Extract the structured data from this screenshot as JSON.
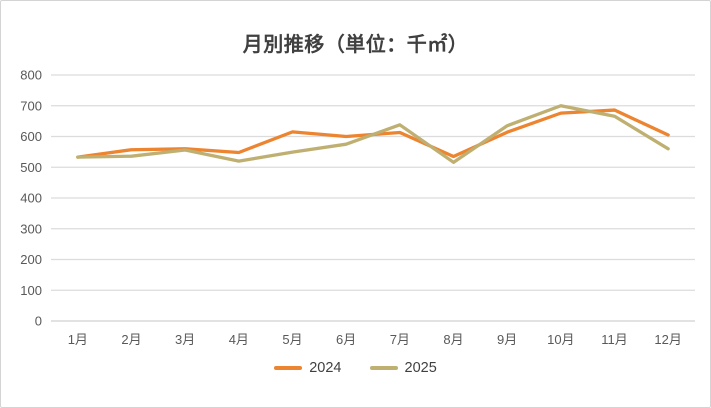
{
  "chart_data": {
    "type": "line",
    "title": "月別推移（単位：千㎡）",
    "categories": [
      "1月",
      "2月",
      "3月",
      "4月",
      "5月",
      "6月",
      "7月",
      "8月",
      "9月",
      "10月",
      "11月",
      "12月"
    ],
    "series": [
      {
        "name": "2024",
        "color": "#EC8430",
        "values": [
          533,
          557,
          560,
          548,
          615,
          600,
          613,
          535,
          614,
          676,
          686,
          605
        ]
      },
      {
        "name": "2025",
        "color": "#BFB072",
        "values": [
          533,
          536,
          556,
          520,
          549,
          575,
          638,
          516,
          635,
          700,
          666,
          560
        ]
      }
    ],
    "xlabel": "",
    "ylabel": "",
    "ylim": [
      0,
      800
    ],
    "yticks": [
      0,
      100,
      200,
      300,
      400,
      500,
      600,
      700,
      800
    ],
    "grid": true,
    "legend_position": "bottom",
    "colors": {
      "gridline": "#dcdcdc",
      "axis_line": "#d0d0d0",
      "tick_text": "#595959",
      "title_text": "#404040"
    }
  },
  "legend": {
    "items": [
      {
        "label": "2024"
      },
      {
        "label": "2025"
      }
    ]
  }
}
